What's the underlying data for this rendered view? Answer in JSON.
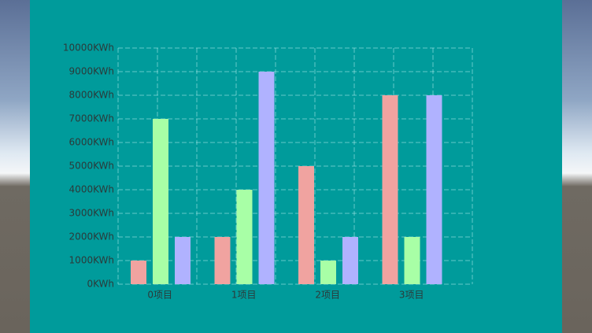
{
  "chart_data": {
    "type": "bar",
    "categories": [
      "0项目",
      "1项目",
      "2项目",
      "3项目"
    ],
    "series": [
      {
        "color": "#f0a3a0",
        "values": [
          1000,
          2000,
          5000,
          8000
        ]
      },
      {
        "color": "#a8ffa6",
        "values": [
          7000,
          4000,
          1000,
          2000
        ]
      },
      {
        "color": "#b0b2ff",
        "values": [
          2000,
          9000,
          2000,
          8000
        ]
      }
    ],
    "ylim": [
      0,
      10000
    ],
    "yticks": [
      {
        "value": 0,
        "label": "0KWh"
      },
      {
        "value": 1000,
        "label": "1000KWh"
      },
      {
        "value": 2000,
        "label": "2000KWh"
      },
      {
        "value": 3000,
        "label": "3000KWh"
      },
      {
        "value": 4000,
        "label": "4000KWh"
      },
      {
        "value": 5000,
        "label": "5000KWh"
      },
      {
        "value": 6000,
        "label": "6000KWh"
      },
      {
        "value": 7000,
        "label": "7000KWh"
      },
      {
        "value": 8000,
        "label": "8000KWh"
      },
      {
        "value": 9000,
        "label": "9000KWh"
      },
      {
        "value": 10000,
        "label": "10000KWh"
      }
    ],
    "grid": true
  }
}
